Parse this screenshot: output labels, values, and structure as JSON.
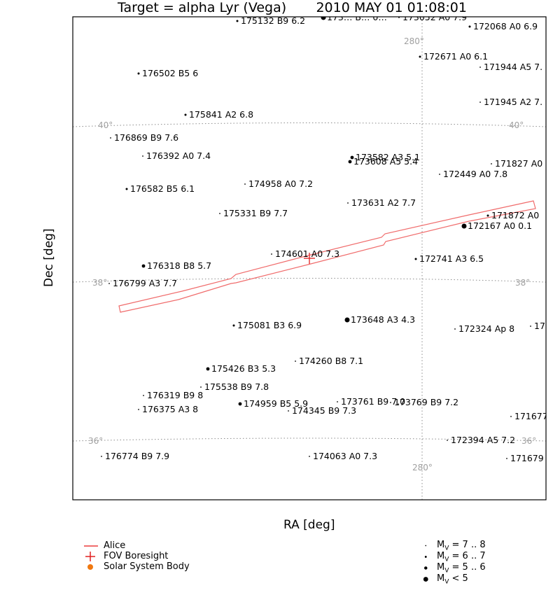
{
  "title": {
    "target": "Target = alpha Lyr (Vega)",
    "datetime": "2010 MAY 01 01:08:01"
  },
  "chart_data": {
    "type": "scatter",
    "xlabel": "RA [deg]",
    "ylabel": "Dec [deg]",
    "grid_labels": {
      "dec": [
        "40°",
        "38°",
        "36°"
      ],
      "ra": [
        "280°"
      ]
    },
    "colors": {
      "grid": "#8c8c8c",
      "alice": "#f06c6c",
      "boresight": "#e02020",
      "solar_system": "#f07810"
    },
    "stars": [
      {
        "label": "175132 B9 6.2",
        "mag": 6.2
      },
      {
        "label": "173… B… 0…",
        "mag": 4.5
      },
      {
        "label": "173052 A0 7.9",
        "mag": 7.9
      },
      {
        "label": "172068 A0 6.9",
        "mag": 6.9
      },
      {
        "label": "172671 A0 6.1",
        "mag": 6.1
      },
      {
        "label": "171944 A5 7.",
        "mag": 7.0
      },
      {
        "label": "176502 B5 6",
        "mag": 6.0
      },
      {
        "label": "171945 A2 7.",
        "mag": 7.0
      },
      {
        "label": "175841 A2 6.8",
        "mag": 6.8
      },
      {
        "label": "176869 B9 7.6",
        "mag": 7.6
      },
      {
        "label": "176392 A0 7.4",
        "mag": 7.4
      },
      {
        "label": "173582 A3 5.1",
        "mag": 5.1
      },
      {
        "label": "173608 A5 5.4",
        "mag": 5.4
      },
      {
        "label": "171827 A0",
        "mag": 7.5
      },
      {
        "label": "172449 A0 7.8",
        "mag": 7.8
      },
      {
        "label": "176582 B5 6.1",
        "mag": 6.1
      },
      {
        "label": "174958 A0 7.2",
        "mag": 7.2
      },
      {
        "label": "173631 A2 7.7",
        "mag": 7.7
      },
      {
        "label": "175331 B9 7.7",
        "mag": 7.7
      },
      {
        "label": "171872 A0",
        "mag": 6.5
      },
      {
        "label": "172167 A0 0.1",
        "mag": 0.1
      },
      {
        "label": "174601 A0 7.3",
        "mag": 7.3
      },
      {
        "label": "172741 A3 6.5",
        "mag": 6.5
      },
      {
        "label": "176318 B8 5.7",
        "mag": 5.7
      },
      {
        "label": "176799 A3 7.7",
        "mag": 7.7
      },
      {
        "label": "173648 A3 4.3",
        "mag": 4.3
      },
      {
        "label": "175081 B3 6.9",
        "mag": 6.9
      },
      {
        "label": "172324 Ap 8",
        "mag": 8.0
      },
      {
        "label": "17",
        "mag": 7.5
      },
      {
        "label": "174260 B8 7.1",
        "mag": 7.1
      },
      {
        "label": "175426 B3 5.3",
        "mag": 5.3
      },
      {
        "label": "175538 B9 7.8",
        "mag": 7.8
      },
      {
        "label": "176319 B9 8",
        "mag": 8.0
      },
      {
        "label": "173761 B9 7.0",
        "mag": 7.0
      },
      {
        "label": "173769 B9 7.2",
        "mag": 7.2
      },
      {
        "label": "174959 B5 5.9",
        "mag": 5.9
      },
      {
        "label": "174345 B9 7.3",
        "mag": 7.3
      },
      {
        "label": "176375 A3 8",
        "mag": 8.0
      },
      {
        "label": "171677",
        "mag": 7.5
      },
      {
        "label": "172394 A5 7.2",
        "mag": 7.2
      },
      {
        "label": "176774 B9 7.9",
        "mag": 7.9
      },
      {
        "label": "174063 A0 7.3",
        "mag": 7.3
      },
      {
        "label": "171679",
        "mag": 7.5
      }
    ]
  },
  "legend": {
    "alice": "Alice",
    "boresight": "FOV Boresight",
    "solar": "Solar System Body",
    "mag": [
      {
        "M": "M",
        "sub": "V",
        "range": "= 7 .. 8"
      },
      {
        "M": "M",
        "sub": "V",
        "range": "= 6 .. 7"
      },
      {
        "M": "M",
        "sub": "V",
        "range": "= 5 .. 6"
      },
      {
        "M": "M",
        "sub": "V",
        "range": "< 5"
      }
    ]
  }
}
